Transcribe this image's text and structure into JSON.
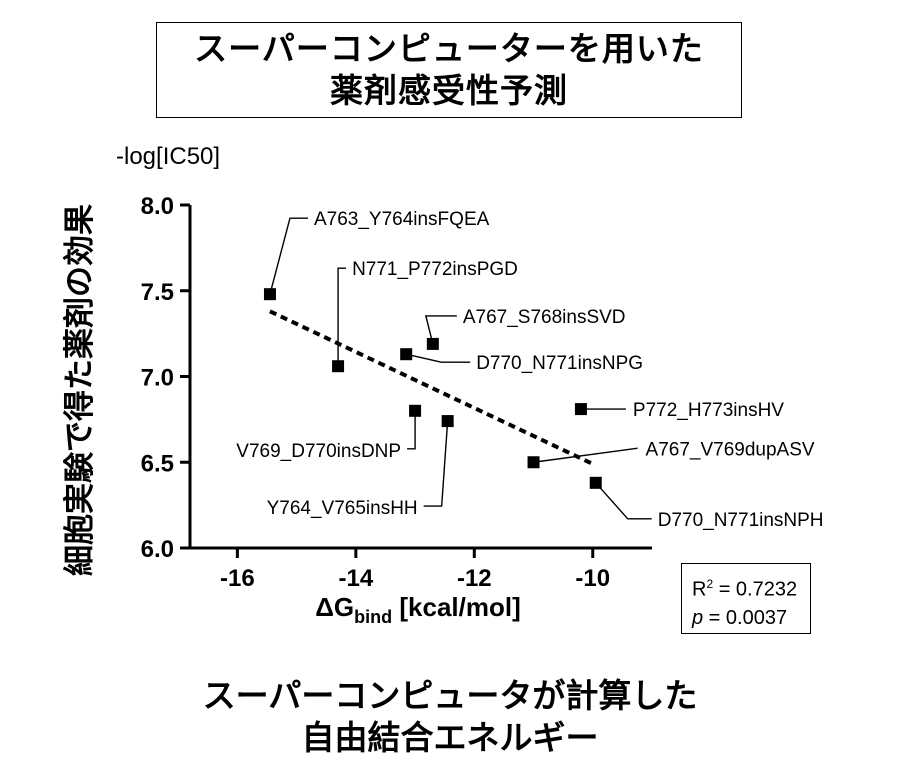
{
  "title": {
    "line1": "スーパーコンピューターを用いた",
    "line2": "薬剤感受性予測"
  },
  "caption": {
    "line1": "スーパーコンピュータが計算した",
    "line2": "自由結合エネルギー"
  },
  "stats": {
    "r2_label": "R",
    "r2_sup": "2",
    "r2_value": " = 0.7232",
    "p_label": "p",
    "p_value": " = 0.0037"
  },
  "chart_data": {
    "type": "scatter",
    "ylabel": "細胞実験で得た薬剤の効果",
    "ylabel_unit": "-log[IC50]",
    "xlabel_main": "ΔG",
    "xlabel_sub": "bind",
    "xlabel_unit": " [kcal/mol]",
    "xlim": [
      -16.8,
      -9.0
    ],
    "ylim": [
      6.0,
      8.0
    ],
    "xticks": [
      -16,
      -14,
      -12,
      -10
    ],
    "xtick_labels": [
      "-16",
      "-14",
      "-12",
      "-10"
    ],
    "yticks": [
      6.0,
      6.5,
      7.0,
      7.5,
      8.0
    ],
    "ytick_labels": [
      "6.0",
      "6.5",
      "7.0",
      "7.5",
      "8.0"
    ],
    "points": [
      {
        "label": "A763_Y764insFQEA",
        "x": -15.45,
        "y": 7.48
      },
      {
        "label": "N771_P772insPGD",
        "x": -14.3,
        "y": 7.06
      },
      {
        "label": "A767_S768insSVD",
        "x": -12.7,
        "y": 7.19
      },
      {
        "label": "D770_N771insNPG",
        "x": -13.15,
        "y": 7.13
      },
      {
        "label": "P772_H773insHV",
        "x": -10.2,
        "y": 6.81
      },
      {
        "label": "V769_D770insDNP",
        "x": -13.0,
        "y": 6.8
      },
      {
        "label": "Y764_V765insHH",
        "x": -12.45,
        "y": 6.74
      },
      {
        "label": "A767_V769dupASV",
        "x": -11.0,
        "y": 6.5
      },
      {
        "label": "D770_N771insNPH",
        "x": -9.95,
        "y": 6.38
      }
    ],
    "fit_line": {
      "x": [
        -15.45,
        -10.0
      ],
      "y": [
        7.38,
        6.49
      ]
    }
  }
}
